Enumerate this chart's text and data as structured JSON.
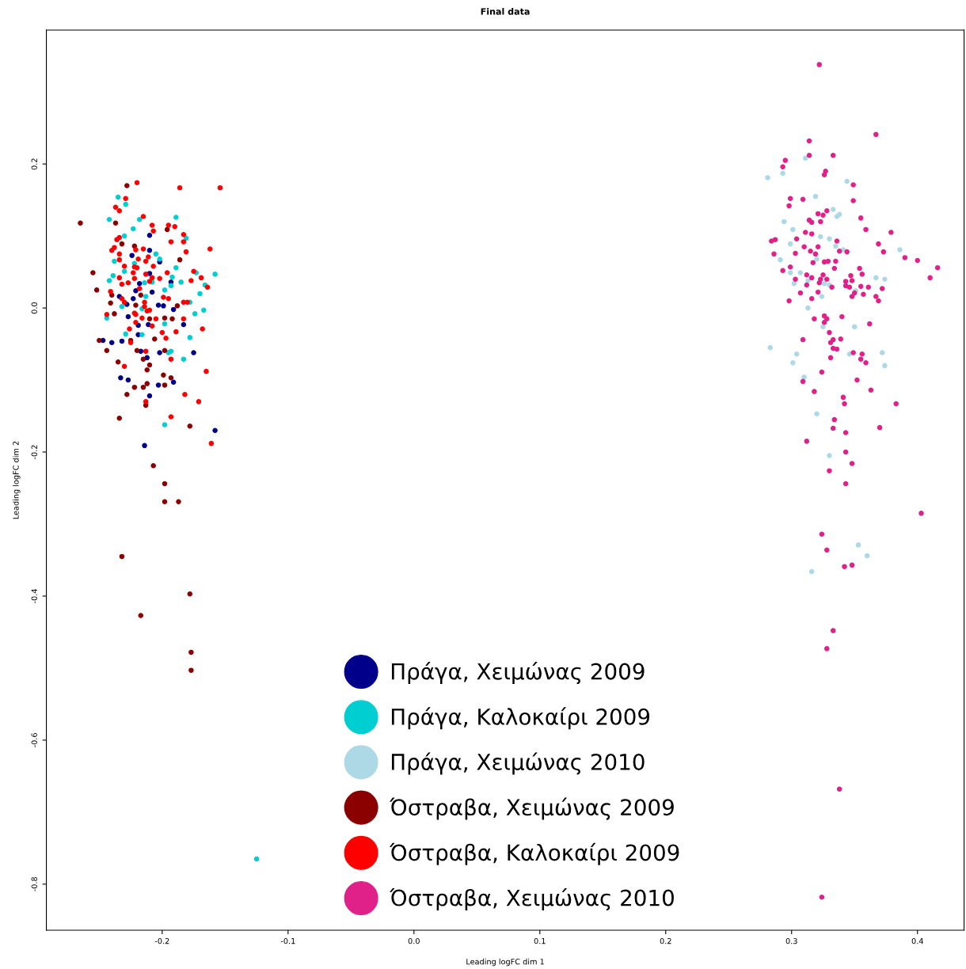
{
  "chart_data": {
    "type": "scatter",
    "title": "Final data",
    "xlabel": "Leading logFC dim 1",
    "ylabel": "Leading logFC dim 2",
    "xlim": [
      -0.292,
      0.437
    ],
    "ylim": [
      -0.864,
      0.386
    ],
    "xticks": [
      -0.2,
      -0.1,
      {
        "value": 0.0,
        "label": "0.0"
      },
      0.1,
      0.2,
      0.3,
      0.4
    ],
    "yticks": [
      -0.8,
      -0.6,
      -0.4,
      -0.2,
      {
        "value": 0.0,
        "label": "0.0"
      },
      0.2
    ],
    "grid": false,
    "legend": "bottom",
    "marker": "circle",
    "series": [
      {
        "name": "Πράγα, Χειμώνας 2009",
        "color": "#00008b",
        "x": [
          -0.21,
          -0.224,
          -0.21,
          -0.202,
          -0.193,
          -0.208,
          -0.221,
          -0.234,
          -0.228,
          -0.223,
          -0.218,
          -0.199,
          -0.203,
          -0.227,
          -0.219,
          -0.211,
          -0.191,
          -0.183,
          -0.247,
          -0.24,
          -0.232,
          -0.219,
          -0.217,
          -0.202,
          -0.175,
          -0.21,
          -0.212,
          -0.233,
          -0.227,
          -0.203,
          -0.191,
          -0.21,
          -0.158,
          -0.214
        ],
        "values": [
          0.101,
          0.073,
          0.08,
          0.064,
          0.036,
          0.022,
          0.024,
          0.016,
          0.005,
          0.013,
          0.034,
          0.003,
          0.004,
          -0.012,
          -0.024,
          -0.023,
          -0.002,
          -0.023,
          -0.045,
          -0.048,
          -0.046,
          -0.037,
          -0.06,
          -0.062,
          -0.062,
          0.048,
          -0.069,
          -0.097,
          -0.1,
          -0.107,
          -0.103,
          -0.122,
          -0.17,
          -0.191
        ]
      },
      {
        "name": "Πράγα, Καλοκαίρι 2009",
        "color": "#00ced1",
        "x": [
          -0.235,
          -0.229,
          -0.242,
          -0.218,
          -0.189,
          -0.223,
          -0.181,
          -0.23,
          -0.238,
          -0.222,
          -0.205,
          -0.202,
          -0.239,
          -0.242,
          -0.23,
          -0.189,
          -0.192,
          -0.185,
          -0.198,
          -0.193,
          -0.213,
          -0.232,
          -0.216,
          -0.178,
          -0.17,
          -0.166,
          -0.173,
          -0.158,
          -0.174,
          -0.167,
          -0.244,
          -0.198,
          -0.178,
          -0.229,
          -0.216,
          -0.193,
          -0.214,
          -0.208,
          -0.195,
          -0.183,
          -0.198,
          -0.125
        ],
        "values": [
          0.154,
          0.144,
          0.123,
          0.123,
          0.126,
          0.11,
          0.097,
          0.1,
          0.065,
          0.062,
          0.075,
          0.068,
          0.045,
          0.038,
          0.051,
          0.056,
          0.043,
          0.036,
          0.025,
          0.031,
          0.016,
          0.002,
          -0.001,
          0.008,
          0.02,
          0.032,
          0.049,
          0.047,
          -0.008,
          -0.003,
          -0.014,
          -0.022,
          -0.041,
          -0.036,
          -0.037,
          -0.06,
          0.035,
          0.036,
          -0.062,
          -0.071,
          -0.162,
          -0.765
        ]
      },
      {
        "name": "Πράγα, Χειμώνας 2010",
        "color": "#add8e6",
        "x": [
          0.281,
          0.293,
          0.311,
          0.344,
          0.319,
          0.333,
          0.338,
          0.336,
          0.294,
          0.301,
          0.323,
          0.33,
          0.299,
          0.335,
          0.341,
          0.291,
          0.32,
          0.386,
          0.299,
          0.307,
          0.367,
          0.374,
          0.302,
          0.313,
          0.33,
          0.326,
          0.324,
          0.351,
          0.313,
          0.325,
          0.35,
          0.283,
          0.304,
          0.301,
          0.346,
          0.372,
          0.374,
          0.31,
          0.32,
          0.33,
          0.353,
          0.36,
          0.316
        ],
        "values": [
          0.181,
          0.187,
          0.208,
          0.176,
          0.155,
          0.137,
          0.13,
          0.127,
          0.12,
          0.109,
          0.099,
          0.096,
          0.089,
          0.086,
          0.081,
          0.067,
          0.068,
          0.081,
          0.049,
          0.049,
          0.042,
          0.04,
          0.034,
          0.038,
          0.032,
          0.034,
          0.016,
          0.024,
          0.0,
          -0.026,
          -0.026,
          -0.055,
          -0.064,
          -0.076,
          -0.064,
          -0.062,
          -0.08,
          -0.096,
          -0.147,
          -0.205,
          -0.329,
          -0.344,
          -0.366
        ]
      },
      {
        "name": "Όστραβα, Χειμώνας 2009",
        "color": "#8b0000",
        "x": [
          -0.228,
          -0.265,
          -0.237,
          -0.232,
          -0.222,
          -0.186,
          -0.255,
          -0.252,
          -0.24,
          -0.241,
          -0.221,
          -0.217,
          -0.198,
          -0.21,
          -0.188,
          -0.238,
          -0.192,
          -0.25,
          -0.244,
          -0.198,
          -0.206,
          -0.22,
          -0.196,
          -0.225,
          -0.215,
          -0.235,
          -0.21,
          -0.212,
          -0.199,
          -0.193,
          -0.222,
          -0.215,
          -0.212,
          -0.198,
          -0.228,
          -0.213,
          -0.234,
          -0.178,
          -0.207,
          -0.198,
          -0.198,
          -0.187,
          -0.232,
          -0.178,
          -0.217,
          -0.177,
          -0.177
        ],
        "values": [
          0.17,
          0.118,
          0.118,
          0.089,
          0.086,
          0.067,
          0.049,
          0.025,
          0.018,
          0.007,
          0.004,
          0.018,
          -0.014,
          -0.015,
          0.003,
          -0.008,
          -0.015,
          -0.045,
          -0.059,
          -0.059,
          -0.043,
          -0.059,
          0.109,
          -0.045,
          -0.071,
          -0.075,
          -0.079,
          -0.086,
          -0.093,
          -0.097,
          -0.11,
          -0.11,
          -0.105,
          -0.107,
          -0.12,
          -0.135,
          -0.153,
          -0.164,
          -0.219,
          -0.244,
          -0.269,
          -0.269,
          -0.345,
          -0.397,
          -0.427,
          -0.478,
          -0.503
        ]
      },
      {
        "name": "Όστραβα, Καλοκαίρι 2009",
        "color": "#ff0000",
        "x": [
          -0.22,
          -0.186,
          -0.154,
          -0.229,
          -0.237,
          -0.234,
          -0.215,
          -0.208,
          -0.195,
          -0.19,
          -0.207,
          -0.234,
          -0.236,
          -0.183,
          -0.193,
          -0.183,
          -0.24,
          -0.238,
          -0.221,
          -0.215,
          -0.181,
          -0.162,
          -0.234,
          -0.211,
          -0.219,
          -0.234,
          -0.213,
          -0.23,
          -0.222,
          -0.22,
          -0.207,
          -0.223,
          -0.213,
          -0.208,
          -0.21,
          -0.202,
          -0.175,
          -0.177,
          -0.169,
          -0.164,
          -0.234,
          -0.227,
          -0.232,
          -0.196,
          -0.218,
          -0.222,
          -0.241,
          -0.232,
          -0.23,
          -0.199,
          -0.195,
          -0.183,
          -0.18,
          -0.214,
          -0.21,
          -0.221,
          -0.222,
          -0.212,
          -0.244,
          -0.216,
          -0.205,
          -0.214,
          -0.226,
          -0.221,
          -0.208,
          -0.2,
          -0.189,
          -0.168,
          -0.197,
          -0.183,
          -0.213,
          -0.225,
          -0.23,
          -0.193,
          -0.165,
          -0.182,
          -0.171,
          -0.213,
          -0.193,
          -0.161
        ],
        "values": [
          0.174,
          0.167,
          0.167,
          0.152,
          0.14,
          0.135,
          0.127,
          0.115,
          0.115,
          0.113,
          0.107,
          0.098,
          0.095,
          0.102,
          0.092,
          0.092,
          0.08,
          0.084,
          0.081,
          0.082,
          0.078,
          0.082,
          0.075,
          0.071,
          0.068,
          0.067,
          0.065,
          0.058,
          0.057,
          0.056,
          0.058,
          0.049,
          0.047,
          0.042,
          0.037,
          0.041,
          0.051,
          0.038,
          0.042,
          0.029,
          0.042,
          0.035,
          0.033,
          0.049,
          0.027,
          0.041,
          0.023,
          0.013,
          0.008,
          0.015,
          0.013,
          0.008,
          0.008,
          0.002,
          -0.003,
          -0.009,
          -0.007,
          -0.004,
          -0.009,
          -0.014,
          -0.015,
          0.008,
          -0.029,
          -0.02,
          -0.025,
          -0.034,
          -0.033,
          -0.029,
          -0.042,
          -0.015,
          -0.06,
          -0.048,
          -0.081,
          -0.071,
          -0.088,
          -0.12,
          -0.13,
          -0.13,
          -0.151,
          -0.188
        ]
      },
      {
        "name": "Όστραβα, Χειμώνας 2010",
        "color": "#e0218a",
        "x": [
          0.322,
          0.367,
          0.314,
          0.314,
          0.333,
          0.295,
          0.293,
          0.327,
          0.326,
          0.349,
          0.299,
          0.309,
          0.349,
          0.298,
          0.321,
          0.325,
          0.328,
          0.355,
          0.314,
          0.316,
          0.323,
          0.359,
          0.379,
          0.311,
          0.316,
          0.284,
          0.287,
          0.304,
          0.336,
          0.31,
          0.321,
          0.369,
          0.315,
          0.338,
          0.344,
          0.286,
          0.303,
          0.319,
          0.373,
          0.317,
          0.326,
          0.329,
          0.335,
          0.39,
          0.4,
          0.416,
          0.299,
          0.334,
          0.354,
          0.293,
          0.41,
          0.312,
          0.316,
          0.325,
          0.347,
          0.356,
          0.303,
          0.328,
          0.323,
          0.322,
          0.343,
          0.348,
          0.312,
          0.332,
          0.343,
          0.346,
          0.355,
          0.361,
          0.372,
          0.307,
          0.321,
          0.35,
          0.348,
          0.357,
          0.367,
          0.316,
          0.369,
          0.298,
          0.326,
          0.34,
          0.318,
          0.328,
          0.326,
          0.362,
          0.33,
          0.309,
          0.333,
          0.339,
          0.331,
          0.333,
          0.336,
          0.331,
          0.349,
          0.356,
          0.355,
          0.359,
          0.324,
          0.352,
          0.309,
          0.318,
          0.363,
          0.341,
          0.342,
          0.383,
          0.334,
          0.333,
          0.343,
          0.37,
          0.312,
          0.343,
          0.348,
          0.33,
          0.343,
          0.403,
          0.324,
          0.328,
          0.342,
          0.348,
          0.333,
          0.328,
          0.338,
          0.324
        ],
        "values": [
          0.338,
          0.241,
          0.232,
          0.212,
          0.212,
          0.205,
          0.196,
          0.19,
          0.185,
          0.171,
          0.152,
          0.151,
          0.149,
          0.142,
          0.131,
          0.129,
          0.135,
          0.125,
          0.122,
          0.119,
          0.12,
          0.109,
          0.105,
          0.105,
          0.103,
          0.093,
          0.095,
          0.096,
          0.093,
          0.085,
          0.085,
          0.089,
          0.079,
          0.079,
          0.078,
          0.075,
          0.076,
          0.075,
          0.078,
          0.063,
          0.064,
          0.065,
          0.065,
          0.07,
          0.066,
          0.056,
          0.057,
          0.055,
          0.055,
          0.052,
          0.042,
          0.046,
          0.042,
          0.046,
          0.045,
          0.047,
          0.04,
          0.04,
          0.04,
          0.035,
          0.037,
          0.038,
          0.032,
          0.029,
          0.031,
          0.029,
          0.03,
          0.029,
          0.027,
          0.021,
          0.022,
          0.021,
          0.016,
          0.019,
          0.016,
          0.013,
          0.01,
          0.01,
          -0.011,
          -0.012,
          -0.015,
          -0.015,
          -0.02,
          -0.022,
          -0.034,
          -0.044,
          -0.044,
          -0.043,
          -0.048,
          -0.056,
          -0.057,
          -0.069,
          -0.062,
          -0.064,
          -0.071,
          -0.076,
          -0.089,
          -0.1,
          -0.102,
          -0.116,
          -0.114,
          -0.124,
          -0.133,
          -0.133,
          -0.155,
          -0.167,
          -0.173,
          -0.166,
          -0.185,
          -0.2,
          -0.216,
          -0.226,
          -0.244,
          -0.285,
          -0.314,
          -0.336,
          -0.359,
          -0.357,
          -0.448,
          -0.473,
          -0.668,
          -0.818
        ]
      }
    ]
  }
}
